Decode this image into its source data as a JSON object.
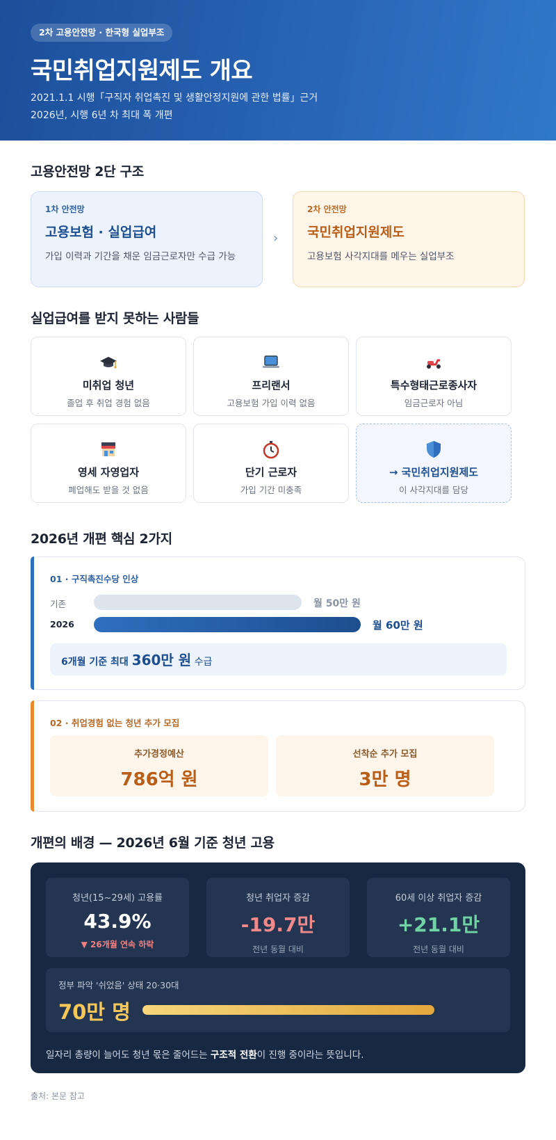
{
  "hero": {
    "badge": "2차 고용안전망 · 한국형 실업부조",
    "title": "국민취업지원제도 개요",
    "line1": "2021.1.1 시행「구직자 취업촉진 및 생활안정지원에 관한 법률」근거",
    "line2": "2026년, 시행 6년 차 최대 폭 개편"
  },
  "structure": {
    "heading": "고용안전망 2단 구조",
    "first": {
      "tag": "1차 안전망",
      "title": "고용보험 · 실업급여",
      "desc": "가입 이력과 기간을 채운 임금근로자만 수급 가능"
    },
    "arrow": "›",
    "second": {
      "tag": "2차 안전망",
      "title": "국민취업지원제도",
      "desc": "고용보험 사각지대를 메우는 실업부조"
    }
  },
  "gap": {
    "heading": "실업급여를 받지 못하는 사람들",
    "cards": [
      {
        "icon": "graduation-cap-icon",
        "title": "미취업 청년",
        "desc": "졸업 후 취업 경험 없음"
      },
      {
        "icon": "laptop-icon",
        "title": "프리랜서",
        "desc": "고용보험 가입 이력 없음"
      },
      {
        "icon": "scooter-icon",
        "title": "특수형태근로종사자",
        "desc": "임금근로자 아님"
      },
      {
        "icon": "store-icon",
        "title": "영세 자영업자",
        "desc": "폐업해도 받을 것 없음"
      },
      {
        "icon": "stopwatch-icon",
        "title": "단기 근로자",
        "desc": "가입 기간 미충족"
      },
      {
        "icon": "shield-icon",
        "title": "→ 국민취업지원제도",
        "desc": "이 사각지대를 담당"
      }
    ]
  },
  "reform": {
    "heading": "2026년 개편 핵심 2가지",
    "item1": {
      "label": "01 · 구직촉진수당 인상",
      "bars": [
        {
          "name": "기존",
          "value": 50,
          "text": "월 50만 원"
        },
        {
          "name": "2026",
          "value": 60,
          "text": "월 60만 원"
        }
      ],
      "summary_prefix": "6개월 기준 최대 ",
      "summary_amount": "360만 원",
      "summary_suffix": " 수급"
    },
    "item2": {
      "label": "02 · 취업경험 없는 청년 추가 모집",
      "boxes": [
        {
          "label": "추가경정예산",
          "value": "786억 원"
        },
        {
          "label": "선착순 추가 모집",
          "value": "3만 명"
        }
      ]
    }
  },
  "background": {
    "heading": "개편의 배경 — 2026년 6월 기준 청년 고용",
    "stats": [
      {
        "label": "청년(15~29세) 고용률",
        "value": "43.9%",
        "foot": "▼ 26개월 연속 하락",
        "color": "#ffffff"
      },
      {
        "label": "청년 취업자 증감",
        "value": "-19.7만",
        "foot": "전년 동월 대비",
        "color": "#f08a8a"
      },
      {
        "label": "60세 이상 취업자 증감",
        "value": "+21.1만",
        "foot": "전년 동월 대비",
        "color": "#6fd3a3"
      }
    ],
    "rest": {
      "label": "정부 파악 '쉬었음' 상태 20·30대",
      "value": "70만 명"
    },
    "note_pre": "일자리 총량이 늘어도 청년 몫은 줄어드는 ",
    "note_bold": "구조적 전환",
    "note_post": "이 진행 중이라는 뜻입니다."
  },
  "source": "출처: 본문 참고"
}
